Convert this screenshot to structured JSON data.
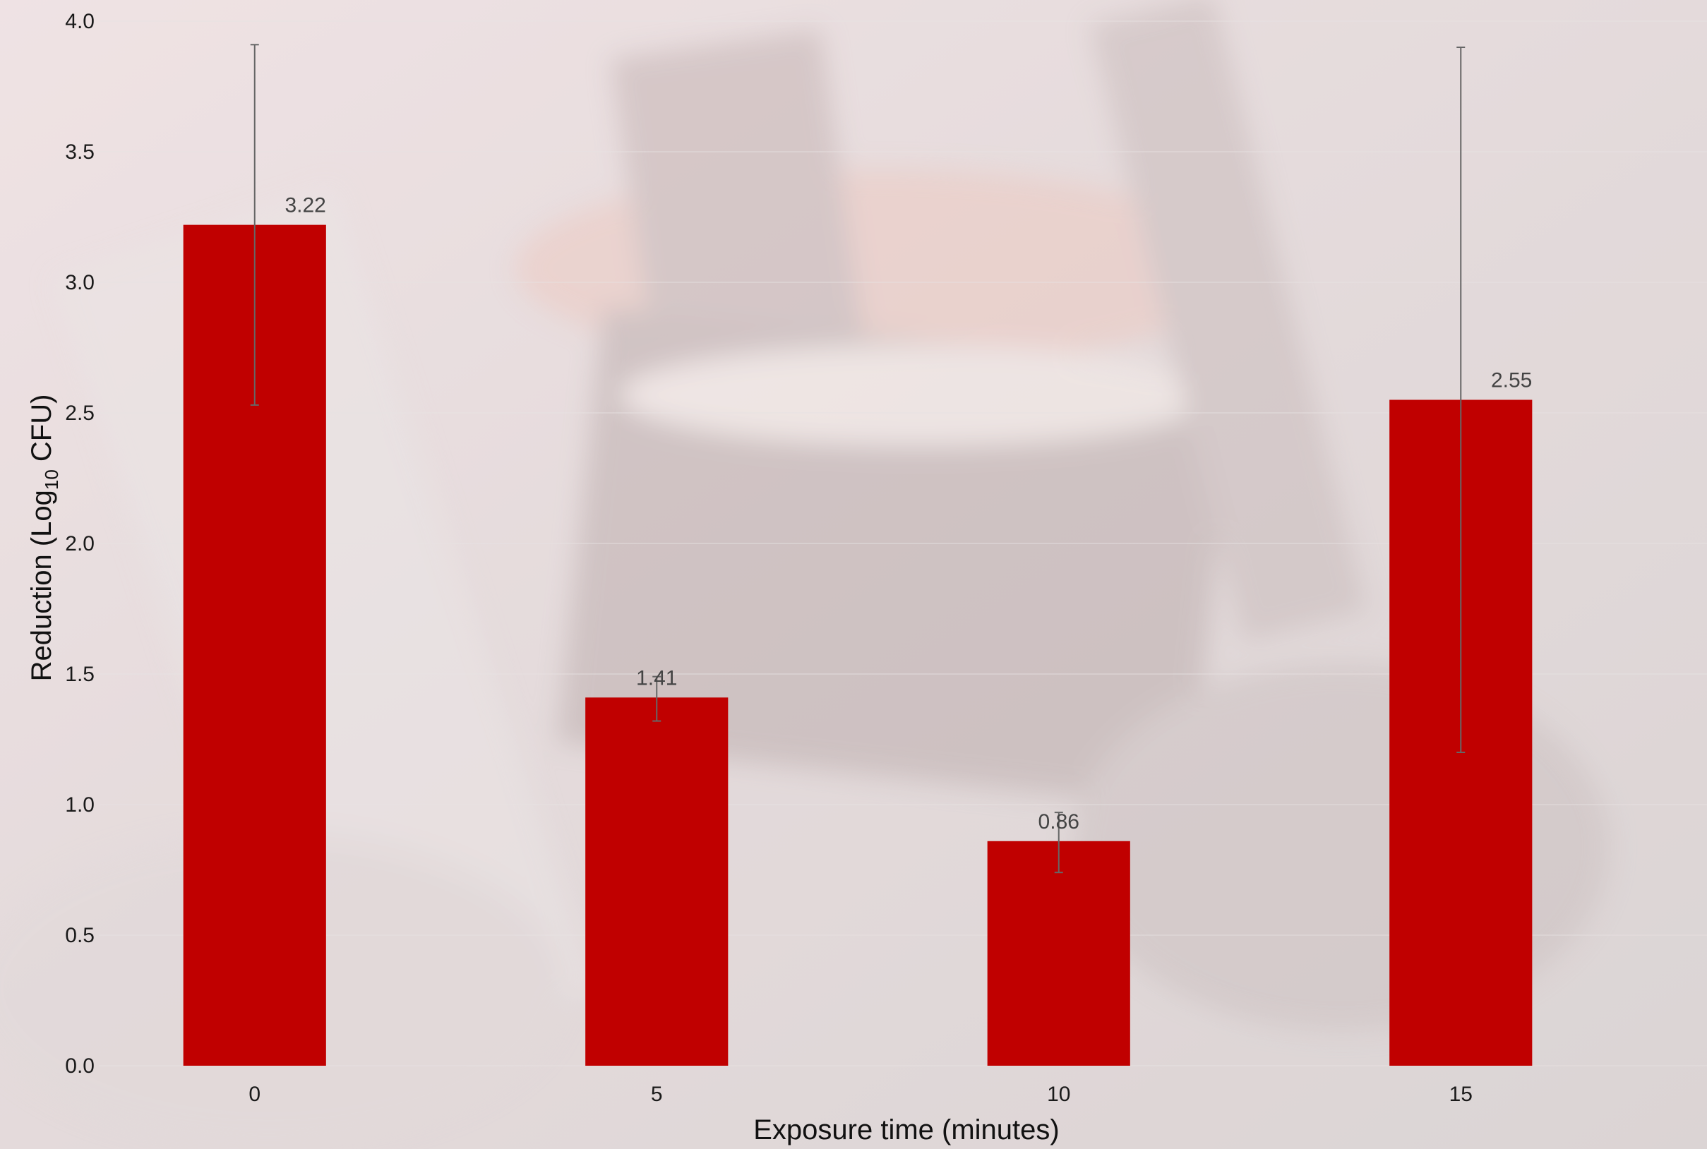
{
  "chart_data": {
    "type": "bar",
    "title": "",
    "xlabel": "Exposure time (minutes)",
    "ylabel": {
      "prefix": "Reduction (Log",
      "subscript": "10",
      "suffix": " CFU)"
    },
    "categories": [
      "0",
      "5",
      "10",
      "15"
    ],
    "values": [
      3.22,
      1.41,
      0.86,
      2.55
    ],
    "data_labels": [
      "3.22",
      "1.41",
      "0.86",
      "2.55"
    ],
    "error_bars": [
      {
        "low": 2.53,
        "high": 3.91
      },
      {
        "low": 1.32,
        "high": 1.49
      },
      {
        "low": 0.74,
        "high": 0.97
      },
      {
        "low": 1.2,
        "high": 3.9
      }
    ],
    "ylim": [
      0,
      4.0
    ],
    "yticks": [
      "0.0",
      "0.5",
      "1.0",
      "1.5",
      "2.0",
      "2.5",
      "3.0",
      "3.5",
      "4.0"
    ],
    "grid": true,
    "legend": "none",
    "bar_color": "#c00000",
    "error_bar_color": "#666666",
    "background": "blurred photograph of a machine, heavily faded"
  }
}
